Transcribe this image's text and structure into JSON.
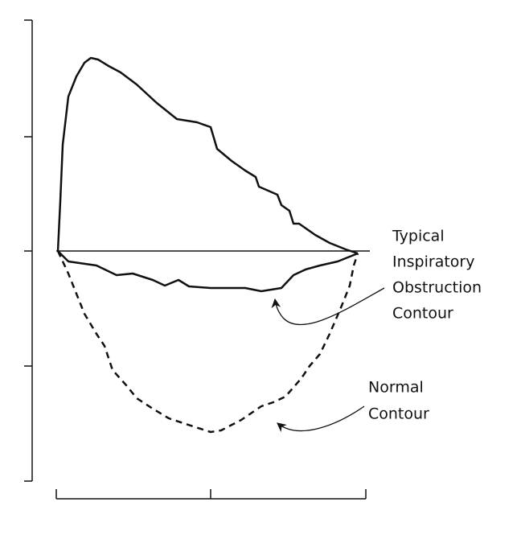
{
  "annotations": [
    {
      "lines": [
        "Typical",
        "Inspiratory",
        "Obstruction",
        "Contour"
      ]
    },
    {
      "lines": [
        "Normal",
        "Contour"
      ]
    }
  ]
}
